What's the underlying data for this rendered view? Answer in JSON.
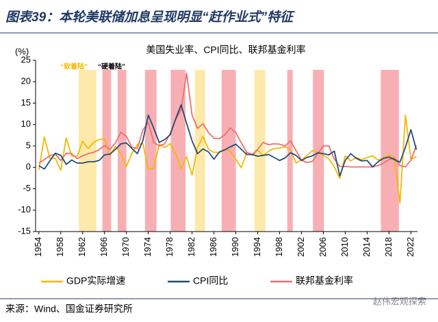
{
  "header": {
    "title": "图表39：本轮美联储加息呈现明显“赶作业式”特征"
  },
  "chart_data": {
    "type": "line",
    "title": "美国失业率、CPI同比、联邦基金利率",
    "y_label": "(%)",
    "annotations": {
      "soft_landing": "“软着陆”",
      "hard_landing": "“硬着陆”"
    },
    "soft_landing_periods": [
      [
        1961.3,
        1964.5
      ],
      [
        1982.5,
        1984.4
      ],
      [
        1993.4,
        1995.4
      ]
    ],
    "hard_landing_periods": [
      [
        1965.6,
        1967.2
      ],
      [
        1968.4,
        1970
      ],
      [
        1973.4,
        1975.5
      ],
      [
        1978.1,
        1980.8
      ],
      [
        1987.4,
        1990
      ],
      [
        1999.4,
        2000.4
      ],
      [
        2004.1,
        2006.1
      ],
      [
        2016.5,
        2019.8
      ]
    ],
    "soft_color": "#fde59a",
    "hard_color": "#f7a1a6",
    "x": [
      1954,
      1955,
      1956,
      1957,
      1958,
      1959,
      1960,
      1961,
      1962,
      1963,
      1964,
      1965,
      1966,
      1967,
      1968,
      1969,
      1970,
      1971,
      1972,
      1973,
      1974,
      1975,
      1976,
      1977,
      1978,
      1979,
      1980,
      1981,
      1982,
      1983,
      1984,
      1985,
      1986,
      1987,
      1988,
      1989,
      1990,
      1991,
      1992,
      1993,
      1994,
      1995,
      1996,
      1997,
      1998,
      1999,
      2000,
      2001,
      2002,
      2003,
      2004,
      2005,
      2006,
      2007,
      2008,
      2009,
      2010,
      2011,
      2012,
      2013,
      2014,
      2015,
      2016,
      2017,
      2018,
      2019,
      2020,
      2021,
      2022,
      2023
    ],
    "series": [
      {
        "name": "GDP实际增速",
        "color": "#f5b800",
        "values": [
          -0.6,
          7.1,
          2.1,
          2.1,
          -0.7,
          6.9,
          2.6,
          2.6,
          6.1,
          4.4,
          5.8,
          6.5,
          6.6,
          2.7,
          4.9,
          3.1,
          0.2,
          3.3,
          5.3,
          5.6,
          -0.5,
          -0.2,
          5.4,
          4.6,
          5.5,
          3.2,
          -0.3,
          2.5,
          -1.8,
          4.6,
          7.2,
          4.2,
          3.5,
          3.5,
          4.2,
          3.7,
          1.9,
          -0.1,
          3.5,
          2.8,
          4.0,
          2.7,
          3.8,
          4.4,
          4.5,
          4.8,
          4.1,
          1.0,
          1.7,
          2.8,
          3.9,
          3.5,
          2.8,
          2.0,
          0.1,
          -2.6,
          2.7,
          1.5,
          2.3,
          1.8,
          2.3,
          2.7,
          1.7,
          2.2,
          2.9,
          2.3,
          -8.4,
          12.2,
          1.9,
          2.5
        ]
      },
      {
        "name": "CPI同比",
        "color": "#1f4e79",
        "values": [
          0.4,
          -0.4,
          1.5,
          3.3,
          2.8,
          0.7,
          1.7,
          1.0,
          1.0,
          1.3,
          1.3,
          1.6,
          2.9,
          3.1,
          4.2,
          5.5,
          5.7,
          4.4,
          3.2,
          6.2,
          12.2,
          9.1,
          5.8,
          6.5,
          7.6,
          11.3,
          14.6,
          10.3,
          6.2,
          3.2,
          4.3,
          3.6,
          1.9,
          3.6,
          4.1,
          4.8,
          5.4,
          4.2,
          3.0,
          3.0,
          2.6,
          2.8,
          3.0,
          2.3,
          1.6,
          2.2,
          3.4,
          2.8,
          1.6,
          2.3,
          2.7,
          3.4,
          3.2,
          2.9,
          3.8,
          -2.0,
          1.6,
          3.2,
          2.1,
          1.5,
          1.6,
          0.1,
          1.3,
          2.1,
          2.4,
          1.8,
          1.2,
          4.7,
          8.8,
          4.1
        ]
      },
      {
        "name": "联邦基金利率",
        "color": "#f26d6d",
        "values": [
          1.0,
          1.8,
          2.7,
          3.1,
          1.6,
          3.3,
          3.2,
          2.0,
          2.7,
          3.2,
          3.5,
          4.1,
          5.1,
          4.2,
          5.7,
          8.2,
          7.2,
          4.7,
          4.4,
          8.7,
          10.5,
          5.8,
          5.0,
          5.5,
          7.9,
          11.2,
          13.4,
          22.0,
          12.2,
          9.1,
          10.2,
          8.1,
          6.8,
          6.7,
          7.6,
          9.2,
          8.1,
          5.7,
          3.5,
          3.0,
          4.2,
          5.8,
          5.3,
          5.5,
          5.4,
          5.0,
          6.2,
          3.9,
          1.7,
          1.1,
          1.4,
          3.2,
          5.0,
          5.0,
          1.9,
          0.2,
          0.2,
          0.1,
          0.1,
          0.1,
          0.1,
          0.1,
          0.4,
          1.0,
          1.8,
          2.2,
          0.4,
          0.1,
          1.7,
          5.1
        ]
      }
    ],
    "xlim": [
      1953.4,
      2023.2
    ],
    "xticks": [
      1954,
      1958,
      1962,
      1966,
      1970,
      1974,
      1978,
      1982,
      1986,
      1990,
      1994,
      1998,
      2002,
      2006,
      2010,
      2014,
      2018,
      2022
    ],
    "ylim": [
      -15,
      25
    ],
    "yticks": [
      -15,
      -10,
      -5,
      0,
      5,
      10,
      15,
      20,
      25
    ]
  },
  "footer": {
    "source": "来源：Wind、国金证券研究所",
    "watermark": "赵伟宏观探索"
  }
}
